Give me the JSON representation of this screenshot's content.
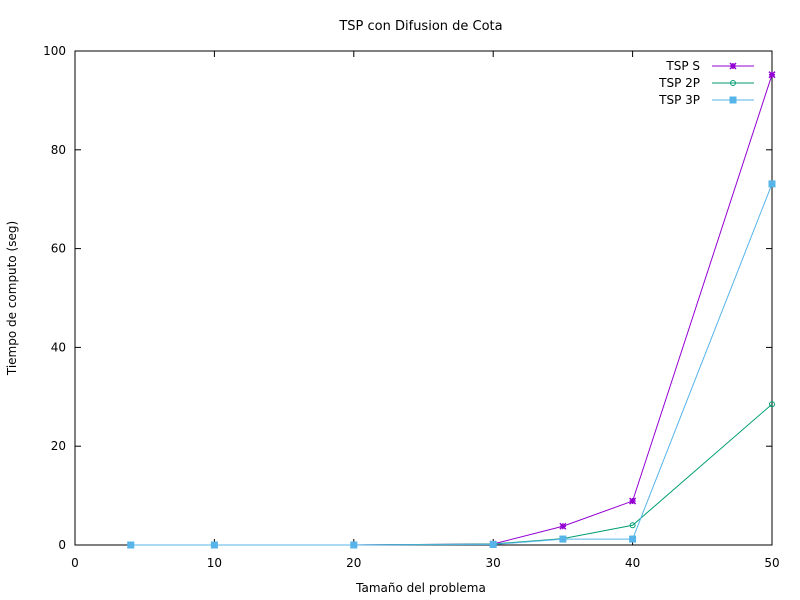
{
  "chart_data": {
    "type": "line",
    "title": "TSP con Difusion de Cota",
    "xlabel": "Tamaño del problema",
    "ylabel": "Tiempo de computo (seg)",
    "xlim": [
      0,
      50
    ],
    "ylim": [
      0,
      100
    ],
    "xticks": [
      "0",
      "10",
      "20",
      "30",
      "40",
      "50"
    ],
    "yticks": [
      "0",
      "20",
      "40",
      "60",
      "80",
      "100"
    ],
    "legend_position": "top-right",
    "grid": false,
    "series": [
      {
        "name": "TSP S",
        "color": "#9400d3",
        "marker": "cross",
        "x": [
          4,
          10,
          20,
          30,
          35,
          40,
          50
        ],
        "y": [
          0,
          0,
          0,
          0.2,
          3.8,
          8.9,
          95.2
        ]
      },
      {
        "name": "TSP 2P",
        "color": "#009e73",
        "marker": "circle",
        "x": [
          4,
          10,
          20,
          30,
          35,
          40,
          50
        ],
        "y": [
          0,
          0,
          0,
          0.2,
          1.3,
          4.0,
          28.5
        ]
      },
      {
        "name": "TSP 3P",
        "color": "#56b4e9",
        "marker": "square",
        "x": [
          4,
          10,
          20,
          30,
          35,
          40,
          50
        ],
        "y": [
          0,
          0,
          0,
          0.1,
          1.2,
          1.2,
          73.1
        ]
      }
    ]
  }
}
